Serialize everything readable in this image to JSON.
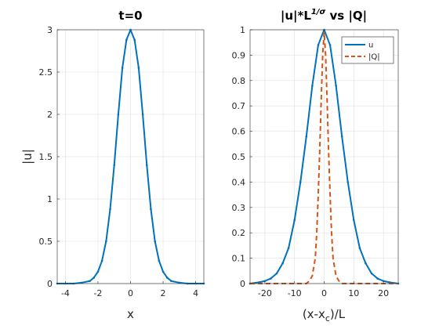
{
  "colors": {
    "series_u": "#0072BD",
    "series_q": "#D95319",
    "grid": "#e0e0e0",
    "axis": "#262626"
  },
  "chart_data": [
    {
      "type": "line",
      "title": "t=0",
      "xlabel": "x",
      "ylabel": "|u|",
      "xlim": [
        -4.5,
        4.5
      ],
      "ylim": [
        0,
        3
      ],
      "xticks": [
        -4,
        -2,
        0,
        2,
        4
      ],
      "xtick_labels": [
        "-4",
        "-2",
        "0",
        "2",
        "4"
      ],
      "yticks": [
        0,
        0.5,
        1,
        1.5,
        2,
        2.5,
        3
      ],
      "ytick_labels": [
        "0",
        "0.5",
        "1",
        "1.5",
        "2",
        "2.5",
        "3"
      ],
      "grid": true,
      "series": [
        {
          "style": "solid-with-point-markers",
          "color": "#0072BD",
          "x": [
            -4.5,
            -4.0,
            -3.5,
            -3.0,
            -2.5,
            -2.25,
            -2.0,
            -1.75,
            -1.5,
            -1.25,
            -1.0,
            -0.75,
            -0.5,
            -0.25,
            0.0,
            0.25,
            0.5,
            0.75,
            1.0,
            1.25,
            1.5,
            1.75,
            2.0,
            2.25,
            2.5,
            3.0,
            3.5,
            4.0,
            4.5
          ],
          "y": [
            0.0,
            0.0,
            0.0,
            0.01,
            0.03,
            0.07,
            0.14,
            0.27,
            0.5,
            0.88,
            1.4,
            2.0,
            2.55,
            2.88,
            3.0,
            2.88,
            2.55,
            2.0,
            1.4,
            0.88,
            0.5,
            0.27,
            0.14,
            0.07,
            0.03,
            0.01,
            0.0,
            0.0,
            0.0
          ]
        }
      ]
    },
    {
      "type": "line",
      "title_main": "|u|*L",
      "title_sup": "1/σ",
      "title_tail": " vs |Q|",
      "xlabel_main": "(x-x",
      "xlabel_sub": "c",
      "xlabel_tail": ")/L",
      "ylabel": "",
      "xlim": [
        -25,
        25
      ],
      "ylim": [
        0,
        1
      ],
      "xticks": [
        -20,
        -10,
        0,
        10,
        20
      ],
      "xtick_labels": [
        "-20",
        "-10",
        "0",
        "10",
        "20"
      ],
      "yticks": [
        0,
        0.1,
        0.2,
        0.3,
        0.4,
        0.5,
        0.6,
        0.7,
        0.8,
        0.9,
        1
      ],
      "ytick_labels": [
        "0",
        "0.1",
        "0.2",
        "0.3",
        "0.4",
        "0.5",
        "0.6",
        "0.7",
        "0.8",
        "0.9",
        "1"
      ],
      "grid": true,
      "legend_position": "top-right",
      "series": [
        {
          "name": "u",
          "style": "solid-with-point-markers",
          "color": "#0072BD",
          "x": [
            -25,
            -22,
            -20,
            -18,
            -16,
            -14,
            -12,
            -10,
            -8,
            -6,
            -4,
            -2,
            0,
            2,
            4,
            6,
            8,
            10,
            12,
            14,
            16,
            18,
            20,
            22,
            25
          ],
          "y": [
            0.0,
            0.005,
            0.01,
            0.02,
            0.04,
            0.08,
            0.14,
            0.25,
            0.4,
            0.58,
            0.78,
            0.94,
            1.0,
            0.94,
            0.78,
            0.58,
            0.4,
            0.25,
            0.14,
            0.08,
            0.04,
            0.02,
            0.01,
            0.005,
            0.0
          ]
        },
        {
          "name": "|Q|",
          "style": "dashed",
          "color": "#D95319",
          "x": [
            -25,
            -10,
            -6,
            -5,
            -4,
            -3,
            -2.5,
            -2,
            -1.5,
            -1,
            -0.5,
            0,
            0.5,
            1,
            1.5,
            2,
            2.5,
            3,
            4,
            5,
            6,
            10,
            25
          ],
          "y": [
            0.0,
            0.0,
            0.0,
            0.01,
            0.03,
            0.1,
            0.2,
            0.35,
            0.52,
            0.72,
            0.9,
            0.99,
            0.9,
            0.72,
            0.52,
            0.35,
            0.2,
            0.1,
            0.03,
            0.01,
            0.0,
            0.0,
            0.0
          ]
        }
      ]
    }
  ]
}
